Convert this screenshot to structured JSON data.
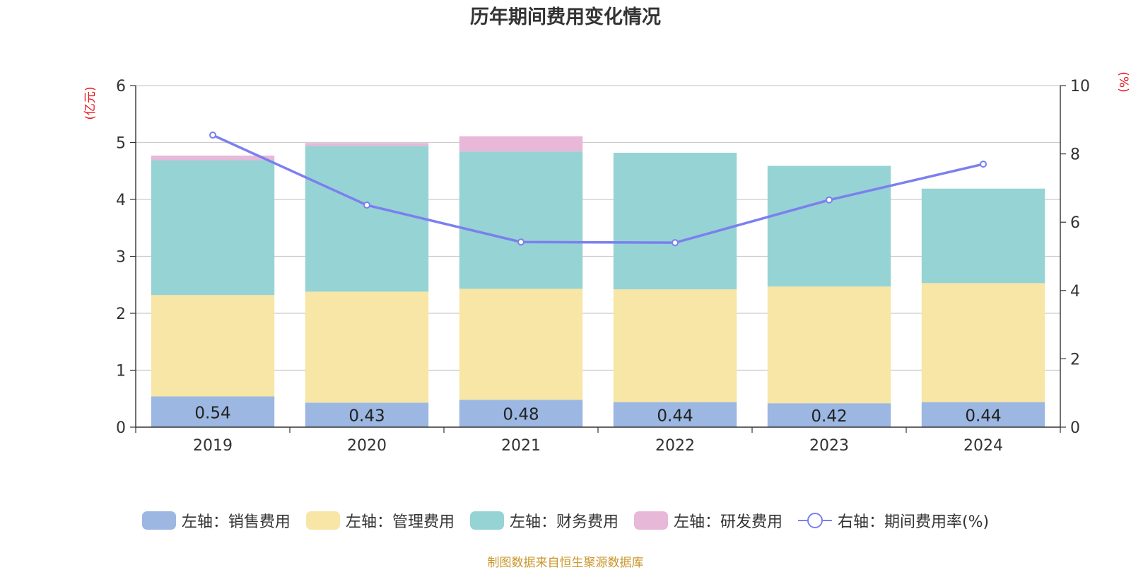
{
  "chart_data": {
    "type": "bar",
    "title": "历年期间费用变化情况",
    "left_axis_unit": "(亿元)",
    "right_axis_unit": "(%)",
    "categories": [
      "2019",
      "2020",
      "2021",
      "2022",
      "2023",
      "2024"
    ],
    "ylim": [
      0,
      6
    ],
    "y_ticks": [
      0,
      1,
      2,
      3,
      4,
      5,
      6
    ],
    "y2lim": [
      0,
      10
    ],
    "y2_ticks": [
      0,
      2,
      4,
      6,
      8,
      10
    ],
    "grid": true,
    "legend_position": "bottom",
    "series": [
      {
        "name": "左轴：销售费用",
        "type": "bar",
        "axis": "left",
        "color": "#9BB7E2",
        "values": [
          0.54,
          0.43,
          0.48,
          0.44,
          0.42,
          0.44
        ],
        "labels": [
          "0.54",
          "0.43",
          "0.48",
          "0.44",
          "0.42",
          "0.44"
        ]
      },
      {
        "name": "左轴：管理费用",
        "type": "bar",
        "axis": "left",
        "color": "#F7E6A6",
        "values": [
          1.78,
          1.95,
          1.95,
          1.98,
          2.05,
          2.09
        ]
      },
      {
        "name": "左轴：财务费用",
        "type": "bar",
        "axis": "left",
        "color": "#96D3D4",
        "values": [
          2.37,
          2.56,
          2.41,
          2.4,
          2.12,
          1.66
        ]
      },
      {
        "name": "左轴：研发费用",
        "type": "bar",
        "axis": "left",
        "color": "#E7B8D8",
        "values": [
          0.08,
          0.05,
          0.27,
          0.0,
          0.0,
          0.0
        ]
      },
      {
        "name": "右轴：期间费用率(%)",
        "type": "line",
        "axis": "right",
        "color": "#7B7FEF",
        "values": [
          8.55,
          6.5,
          5.42,
          5.4,
          6.65,
          7.7
        ]
      }
    ]
  },
  "source_note": "制图数据来自恒生聚源数据库"
}
